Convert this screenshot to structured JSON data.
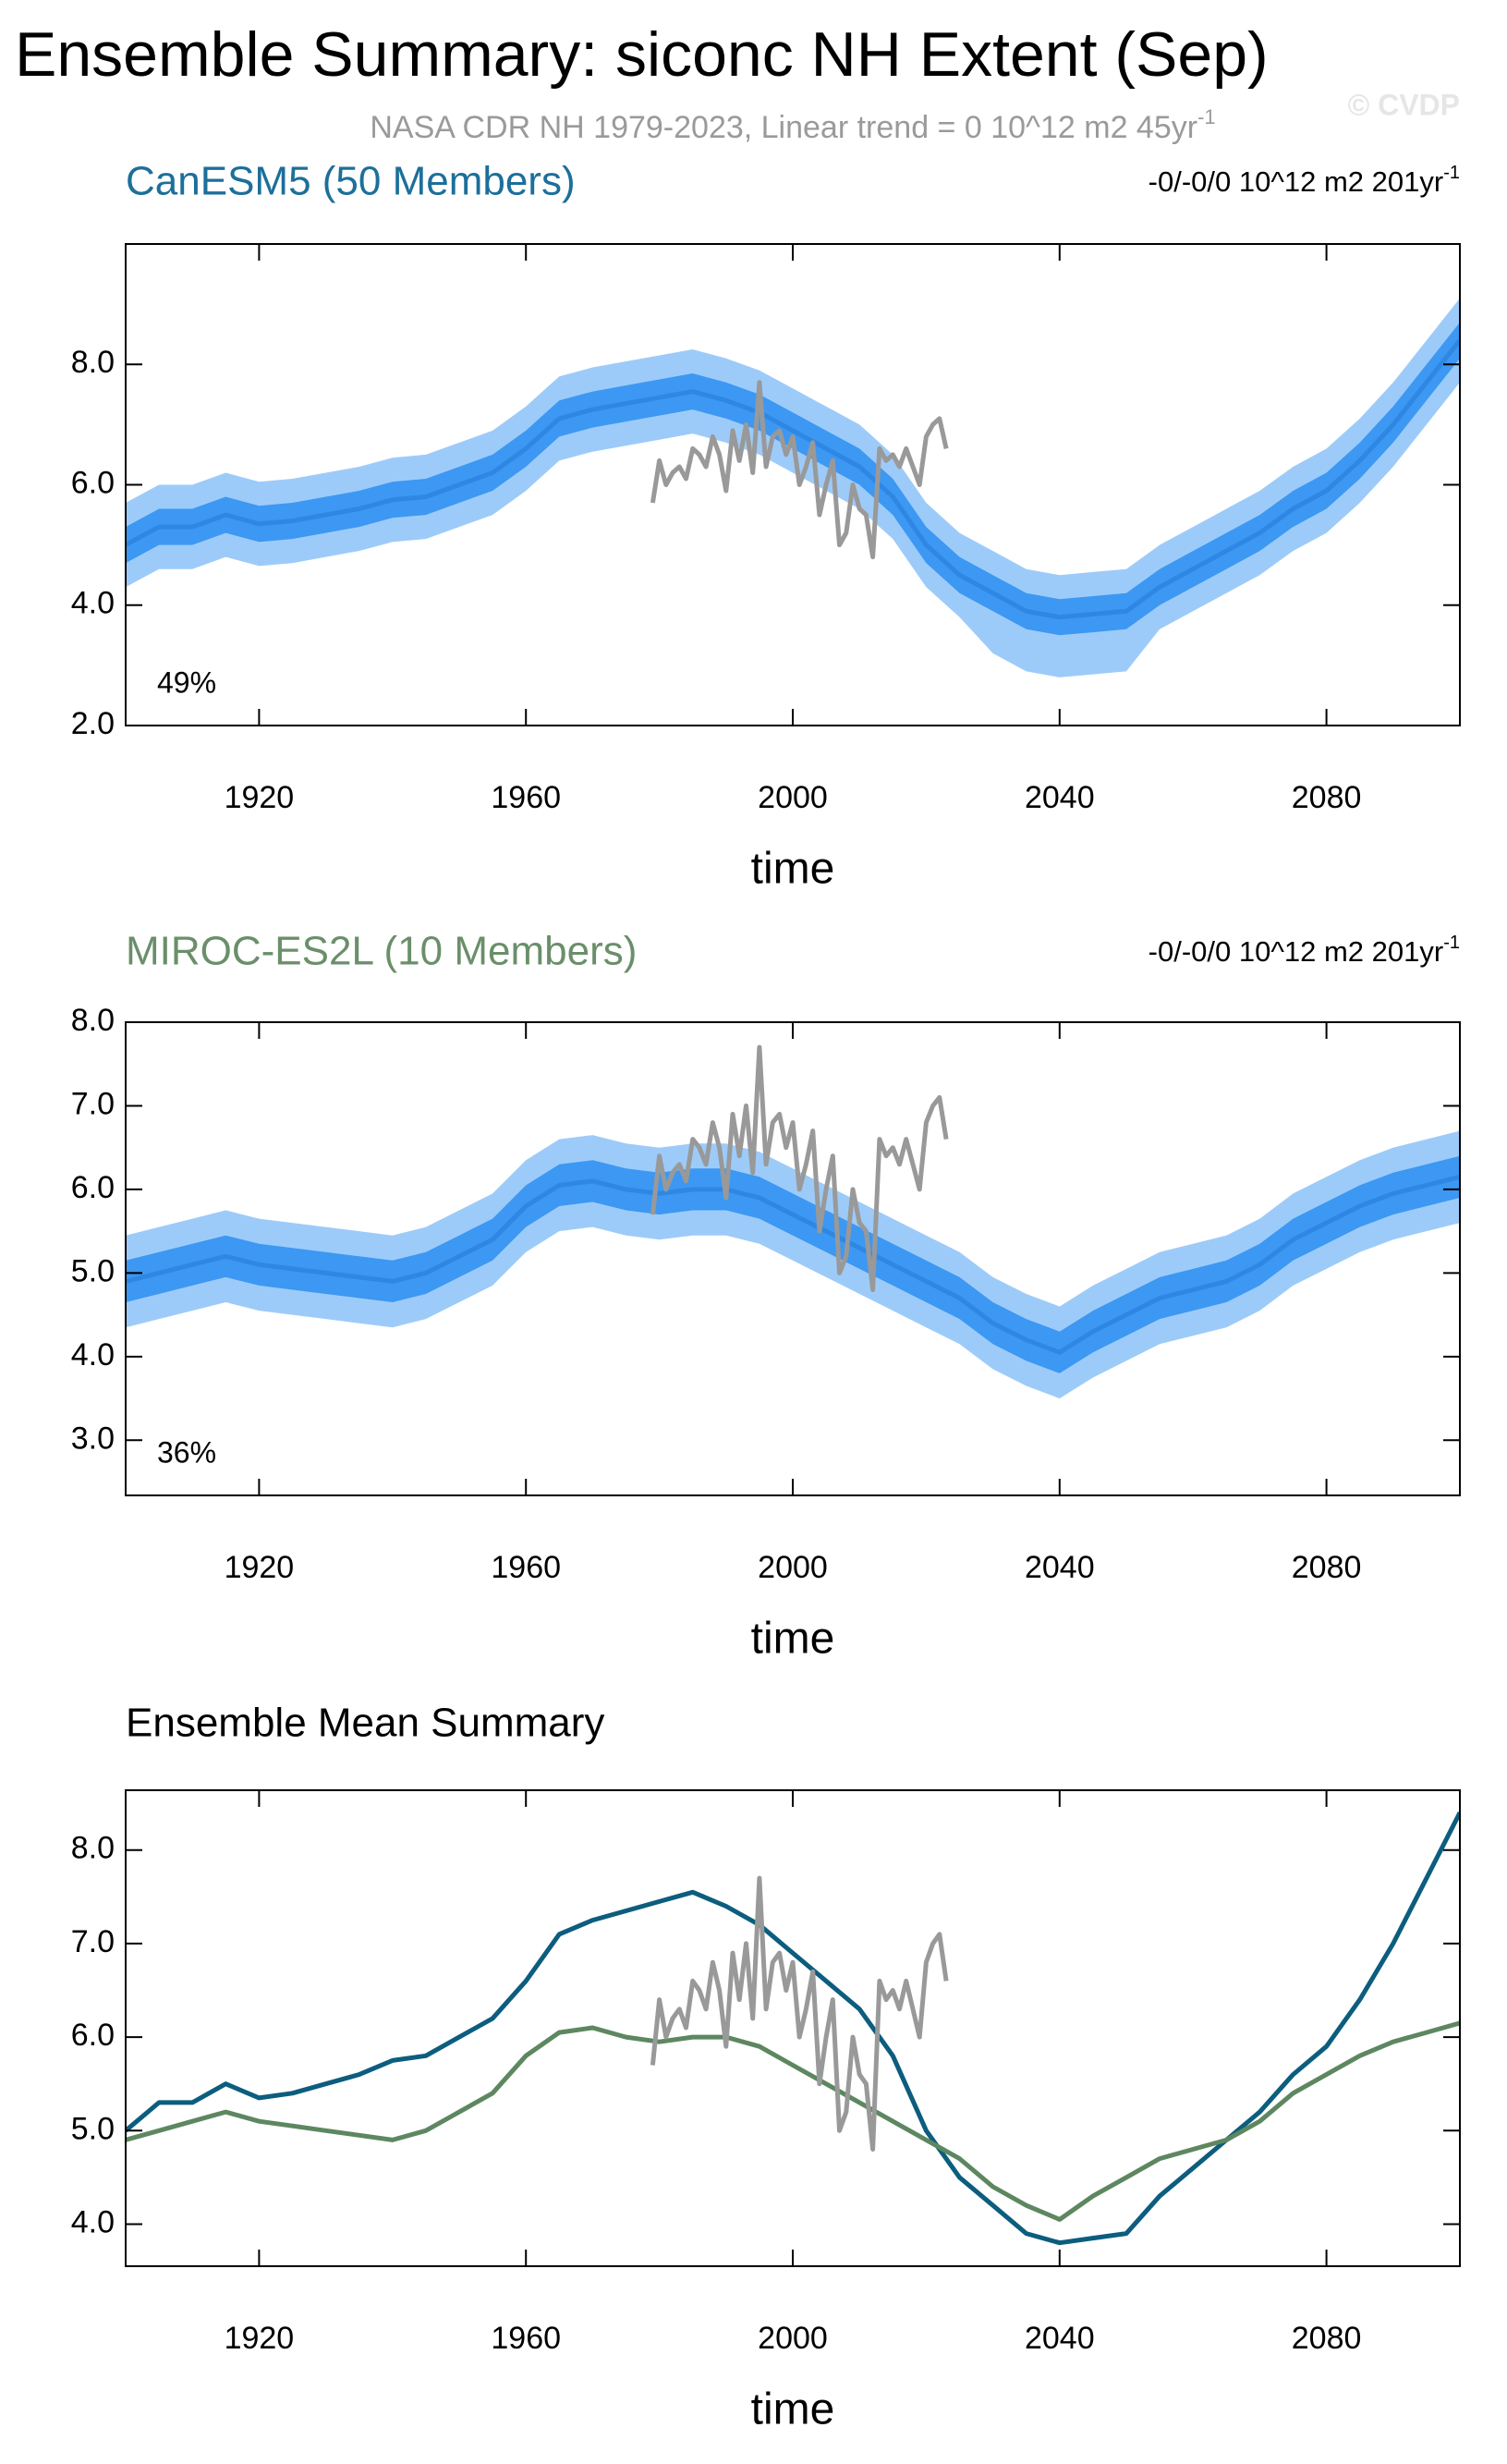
{
  "title": "Ensemble Summary: siconc NH Extent (Sep)",
  "subtitle": "NASA CDR NH 1979-2023, Linear trend = 0 10^12 m2 45yr",
  "subtitle_sup": "-1",
  "watermark": "© CVDP",
  "chart_data": [
    {
      "type": "line",
      "title": "CanESM5 (50 Members)",
      "title_color": "#1c6f9a",
      "right_text": "-0/-0/0 10^12 m2 201yr",
      "right_sup": "-1",
      "annotation": "49%",
      "xlabel": "time",
      "xlim": [
        1900,
        2100
      ],
      "xticks": [
        1920,
        1960,
        2000,
        2040,
        2080
      ],
      "ylim": [
        2.0,
        10.0
      ],
      "yticks": [
        {
          "value": 2,
          "label": "2.0"
        },
        {
          "value": 4,
          "label": "4.0"
        },
        {
          "value": 6,
          "label": "6.0"
        },
        {
          "value": 8,
          "label": "8.0"
        }
      ],
      "x": [
        1900,
        1905,
        1910,
        1915,
        1920,
        1925,
        1930,
        1935,
        1940,
        1945,
        1950,
        1955,
        1960,
        1965,
        1970,
        1975,
        1980,
        1985,
        1990,
        1995,
        2000,
        2005,
        2010,
        2015,
        2020,
        2025,
        2030,
        2035,
        2040,
        2045,
        2050,
        2055,
        2060,
        2065,
        2070,
        2075,
        2080,
        2085,
        2090,
        2095,
        2100
      ],
      "bands": [
        {
          "color": "#9dcbf9",
          "lower": [
            4.3,
            4.6,
            4.6,
            4.8,
            4.65,
            4.7,
            4.8,
            4.9,
            5.05,
            5.1,
            5.3,
            5.5,
            5.9,
            6.4,
            6.55,
            6.65,
            6.75,
            6.85,
            6.7,
            6.5,
            6.2,
            5.9,
            5.6,
            5.1,
            4.3,
            3.8,
            3.2,
            2.9,
            2.8,
            2.85,
            2.9,
            3.6,
            3.9,
            4.2,
            4.5,
            4.9,
            5.2,
            5.7,
            6.3,
            7.0,
            7.7
          ],
          "upper": [
            5.7,
            6.0,
            6.0,
            6.2,
            6.05,
            6.1,
            6.2,
            6.3,
            6.45,
            6.5,
            6.7,
            6.9,
            7.3,
            7.8,
            7.95,
            8.05,
            8.15,
            8.25,
            8.1,
            7.9,
            7.6,
            7.3,
            7.0,
            6.5,
            5.7,
            5.2,
            4.9,
            4.6,
            4.5,
            4.55,
            4.6,
            5.0,
            5.3,
            5.6,
            5.9,
            6.3,
            6.6,
            7.1,
            7.7,
            8.4,
            9.1
          ]
        },
        {
          "color": "#3c98f2",
          "lower": [
            4.7,
            5.0,
            5.0,
            5.2,
            5.05,
            5.1,
            5.2,
            5.3,
            5.45,
            5.5,
            5.7,
            5.9,
            6.3,
            6.8,
            6.95,
            7.05,
            7.15,
            7.25,
            7.1,
            6.9,
            6.6,
            6.3,
            6.0,
            5.5,
            4.7,
            4.2,
            3.9,
            3.6,
            3.5,
            3.55,
            3.6,
            4.0,
            4.3,
            4.6,
            4.9,
            5.3,
            5.6,
            6.1,
            6.7,
            7.4,
            8.1
          ],
          "upper": [
            5.3,
            5.6,
            5.6,
            5.8,
            5.65,
            5.7,
            5.8,
            5.9,
            6.05,
            6.1,
            6.3,
            6.5,
            6.9,
            7.4,
            7.55,
            7.65,
            7.75,
            7.85,
            7.7,
            7.5,
            7.2,
            6.9,
            6.6,
            6.1,
            5.3,
            4.8,
            4.5,
            4.2,
            4.1,
            4.15,
            4.2,
            4.6,
            4.9,
            5.2,
            5.5,
            5.9,
            6.2,
            6.7,
            7.3,
            8.0,
            8.7
          ]
        }
      ],
      "series": [
        {
          "color": "#2f87e4",
          "values": [
            5.0,
            5.3,
            5.3,
            5.5,
            5.35,
            5.4,
            5.5,
            5.6,
            5.75,
            5.8,
            6.0,
            6.2,
            6.6,
            7.1,
            7.25,
            7.35,
            7.45,
            7.55,
            7.4,
            7.2,
            6.9,
            6.6,
            6.3,
            5.8,
            5.0,
            4.5,
            4.2,
            3.9,
            3.8,
            3.85,
            3.9,
            4.3,
            4.6,
            4.9,
            5.2,
            5.6,
            5.9,
            6.4,
            7.0,
            7.7,
            8.4
          ]
        },
        {
          "color": "#999999",
          "x": [
            1979,
            1980,
            1981,
            1982,
            1983,
            1984,
            1985,
            1986,
            1987,
            1988,
            1989,
            1990,
            1991,
            1992,
            1993,
            1994,
            1995,
            1996,
            1997,
            1998,
            1999,
            2000,
            2001,
            2002,
            2003,
            2004,
            2005,
            2006,
            2007,
            2008,
            2009,
            2010,
            2011,
            2012,
            2013,
            2014,
            2015,
            2016,
            2017,
            2018,
            2019,
            2020,
            2021,
            2022,
            2023
          ],
          "values": [
            5.7,
            6.4,
            6.0,
            6.2,
            6.3,
            6.1,
            6.6,
            6.5,
            6.3,
            6.8,
            6.5,
            5.9,
            6.9,
            6.4,
            7.0,
            6.2,
            7.7,
            6.3,
            6.8,
            6.9,
            6.5,
            6.8,
            6.0,
            6.3,
            6.7,
            5.5,
            6.0,
            6.4,
            5.0,
            5.2,
            6.0,
            5.6,
            5.5,
            4.8,
            6.6,
            6.4,
            6.5,
            6.3,
            6.6,
            6.3,
            6.0,
            6.8,
            7.0,
            7.1,
            6.6
          ]
        }
      ]
    },
    {
      "type": "line",
      "title": "MIROC-ES2L (10 Members)",
      "title_color": "#6a8f6a",
      "right_text": "-0/-0/0 10^12 m2 201yr",
      "right_sup": "-1",
      "annotation": "36%",
      "xlabel": "time",
      "xlim": [
        1900,
        2100
      ],
      "xticks": [
        1920,
        1960,
        2000,
        2040,
        2080
      ],
      "ylim": [
        2.34,
        8.0
      ],
      "yticks": [
        {
          "value": 3,
          "label": "3.0"
        },
        {
          "value": 4,
          "label": "4.0"
        },
        {
          "value": 5,
          "label": "5.0"
        },
        {
          "value": 6,
          "label": "6.0"
        },
        {
          "value": 7,
          "label": "7.0"
        },
        {
          "value": 8,
          "label": "8.0"
        }
      ],
      "x": [
        1900,
        1905,
        1910,
        1915,
        1920,
        1925,
        1930,
        1935,
        1940,
        1945,
        1950,
        1955,
        1960,
        1965,
        1970,
        1975,
        1980,
        1985,
        1990,
        1995,
        2000,
        2005,
        2010,
        2015,
        2020,
        2025,
        2030,
        2035,
        2040,
        2045,
        2050,
        2055,
        2060,
        2065,
        2070,
        2075,
        2080,
        2085,
        2090,
        2095,
        2100
      ],
      "bands": [
        {
          "color": "#9dcbf9",
          "lower": [
            4.35,
            4.45,
            4.55,
            4.65,
            4.55,
            4.5,
            4.45,
            4.4,
            4.35,
            4.45,
            4.65,
            4.85,
            5.25,
            5.5,
            5.55,
            5.45,
            5.4,
            5.45,
            5.45,
            5.35,
            5.15,
            4.95,
            4.75,
            4.55,
            4.35,
            4.15,
            3.85,
            3.65,
            3.5,
            3.75,
            3.95,
            4.15,
            4.25,
            4.35,
            4.55,
            4.85,
            5.05,
            5.25,
            5.4,
            5.5,
            5.6
          ],
          "upper": [
            5.45,
            5.55,
            5.65,
            5.75,
            5.65,
            5.6,
            5.55,
            5.5,
            5.45,
            5.55,
            5.75,
            5.95,
            6.35,
            6.6,
            6.65,
            6.55,
            6.5,
            6.55,
            6.55,
            6.45,
            6.25,
            6.05,
            5.85,
            5.65,
            5.45,
            5.25,
            4.95,
            4.75,
            4.6,
            4.85,
            5.05,
            5.25,
            5.35,
            5.45,
            5.65,
            5.95,
            6.15,
            6.35,
            6.5,
            6.6,
            6.7
          ]
        },
        {
          "color": "#3c98f2",
          "lower": [
            4.65,
            4.75,
            4.85,
            4.95,
            4.85,
            4.8,
            4.75,
            4.7,
            4.65,
            4.75,
            4.95,
            5.15,
            5.55,
            5.8,
            5.85,
            5.75,
            5.7,
            5.75,
            5.75,
            5.65,
            5.45,
            5.25,
            5.05,
            4.85,
            4.65,
            4.45,
            4.15,
            3.95,
            3.8,
            4.05,
            4.25,
            4.45,
            4.55,
            4.65,
            4.85,
            5.15,
            5.35,
            5.55,
            5.7,
            5.8,
            5.9
          ],
          "upper": [
            5.15,
            5.25,
            5.35,
            5.45,
            5.35,
            5.3,
            5.25,
            5.2,
            5.15,
            5.25,
            5.45,
            5.65,
            6.05,
            6.3,
            6.35,
            6.25,
            6.2,
            6.25,
            6.25,
            6.15,
            5.95,
            5.75,
            5.55,
            5.35,
            5.15,
            4.95,
            4.65,
            4.45,
            4.3,
            4.55,
            4.75,
            4.95,
            5.05,
            5.15,
            5.35,
            5.65,
            5.85,
            6.05,
            6.2,
            6.3,
            6.4
          ]
        }
      ],
      "series": [
        {
          "color": "#2f87e4",
          "values": [
            4.9,
            5.0,
            5.1,
            5.2,
            5.1,
            5.05,
            5.0,
            4.95,
            4.9,
            5.0,
            5.2,
            5.4,
            5.8,
            6.05,
            6.1,
            6.0,
            5.95,
            6.0,
            6.0,
            5.9,
            5.7,
            5.5,
            5.3,
            5.1,
            4.9,
            4.7,
            4.4,
            4.2,
            4.05,
            4.3,
            4.5,
            4.7,
            4.8,
            4.9,
            5.1,
            5.4,
            5.6,
            5.8,
            5.95,
            6.05,
            6.15
          ]
        },
        {
          "color": "#999999",
          "x": [
            1979,
            1980,
            1981,
            1982,
            1983,
            1984,
            1985,
            1986,
            1987,
            1988,
            1989,
            1990,
            1991,
            1992,
            1993,
            1994,
            1995,
            1996,
            1997,
            1998,
            1999,
            2000,
            2001,
            2002,
            2003,
            2004,
            2005,
            2006,
            2007,
            2008,
            2009,
            2010,
            2011,
            2012,
            2013,
            2014,
            2015,
            2016,
            2017,
            2018,
            2019,
            2020,
            2021,
            2022,
            2023
          ],
          "values": [
            5.7,
            6.4,
            6.0,
            6.2,
            6.3,
            6.1,
            6.6,
            6.5,
            6.3,
            6.8,
            6.5,
            5.9,
            6.9,
            6.4,
            7.0,
            6.2,
            7.7,
            6.3,
            6.8,
            6.9,
            6.5,
            6.8,
            6.0,
            6.3,
            6.7,
            5.5,
            6.0,
            6.4,
            5.0,
            5.2,
            6.0,
            5.6,
            5.5,
            4.8,
            6.6,
            6.4,
            6.5,
            6.3,
            6.6,
            6.3,
            6.0,
            6.8,
            7.0,
            7.1,
            6.6
          ]
        }
      ]
    },
    {
      "type": "line",
      "title": "Ensemble Mean Summary",
      "title_color": "#000000",
      "xlabel": "time",
      "xlim": [
        1900,
        2100
      ],
      "xticks": [
        1920,
        1960,
        2000,
        2040,
        2080
      ],
      "ylim": [
        3.55,
        8.64
      ],
      "yticks": [
        {
          "value": 4,
          "label": "4.0"
        },
        {
          "value": 5,
          "label": "5.0"
        },
        {
          "value": 6,
          "label": "6.0"
        },
        {
          "value": 7,
          "label": "7.0"
        },
        {
          "value": 8,
          "label": "8.0"
        }
      ],
      "x": [
        1900,
        1905,
        1910,
        1915,
        1920,
        1925,
        1930,
        1935,
        1940,
        1945,
        1950,
        1955,
        1960,
        1965,
        1970,
        1975,
        1980,
        1985,
        1990,
        1995,
        2000,
        2005,
        2010,
        2015,
        2020,
        2025,
        2030,
        2035,
        2040,
        2045,
        2050,
        2055,
        2060,
        2065,
        2070,
        2075,
        2080,
        2085,
        2090,
        2095,
        2100
      ],
      "series": [
        {
          "color": "#0c5d7e",
          "values": [
            5.0,
            5.3,
            5.3,
            5.5,
            5.35,
            5.4,
            5.5,
            5.6,
            5.75,
            5.8,
            6.0,
            6.2,
            6.6,
            7.1,
            7.25,
            7.35,
            7.45,
            7.55,
            7.4,
            7.2,
            6.9,
            6.6,
            6.3,
            5.8,
            5.0,
            4.5,
            4.2,
            3.9,
            3.8,
            3.85,
            3.9,
            4.3,
            4.6,
            4.9,
            5.2,
            5.6,
            5.9,
            6.4,
            7.0,
            7.7,
            8.4
          ]
        },
        {
          "color": "#5d8760",
          "values": [
            4.9,
            5.0,
            5.1,
            5.2,
            5.1,
            5.05,
            5.0,
            4.95,
            4.9,
            5.0,
            5.2,
            5.4,
            5.8,
            6.05,
            6.1,
            6.0,
            5.95,
            6.0,
            6.0,
            5.9,
            5.7,
            5.5,
            5.3,
            5.1,
            4.9,
            4.7,
            4.4,
            4.2,
            4.05,
            4.3,
            4.5,
            4.7,
            4.8,
            4.9,
            5.1,
            5.4,
            5.6,
            5.8,
            5.95,
            6.05,
            6.15
          ]
        },
        {
          "color": "#999999",
          "x": [
            1979,
            1980,
            1981,
            1982,
            1983,
            1984,
            1985,
            1986,
            1987,
            1988,
            1989,
            1990,
            1991,
            1992,
            1993,
            1994,
            1995,
            1996,
            1997,
            1998,
            1999,
            2000,
            2001,
            2002,
            2003,
            2004,
            2005,
            2006,
            2007,
            2008,
            2009,
            2010,
            2011,
            2012,
            2013,
            2014,
            2015,
            2016,
            2017,
            2018,
            2019,
            2020,
            2021,
            2022,
            2023
          ],
          "values": [
            5.7,
            6.4,
            6.0,
            6.2,
            6.3,
            6.1,
            6.6,
            6.5,
            6.3,
            6.8,
            6.5,
            5.9,
            6.9,
            6.4,
            7.0,
            6.2,
            7.7,
            6.3,
            6.8,
            6.9,
            6.5,
            6.8,
            6.0,
            6.3,
            6.7,
            5.5,
            6.0,
            6.4,
            5.0,
            5.2,
            6.0,
            5.6,
            5.5,
            4.8,
            6.6,
            6.4,
            6.5,
            6.3,
            6.6,
            6.3,
            6.0,
            6.8,
            7.0,
            7.1,
            6.6
          ]
        }
      ]
    }
  ]
}
